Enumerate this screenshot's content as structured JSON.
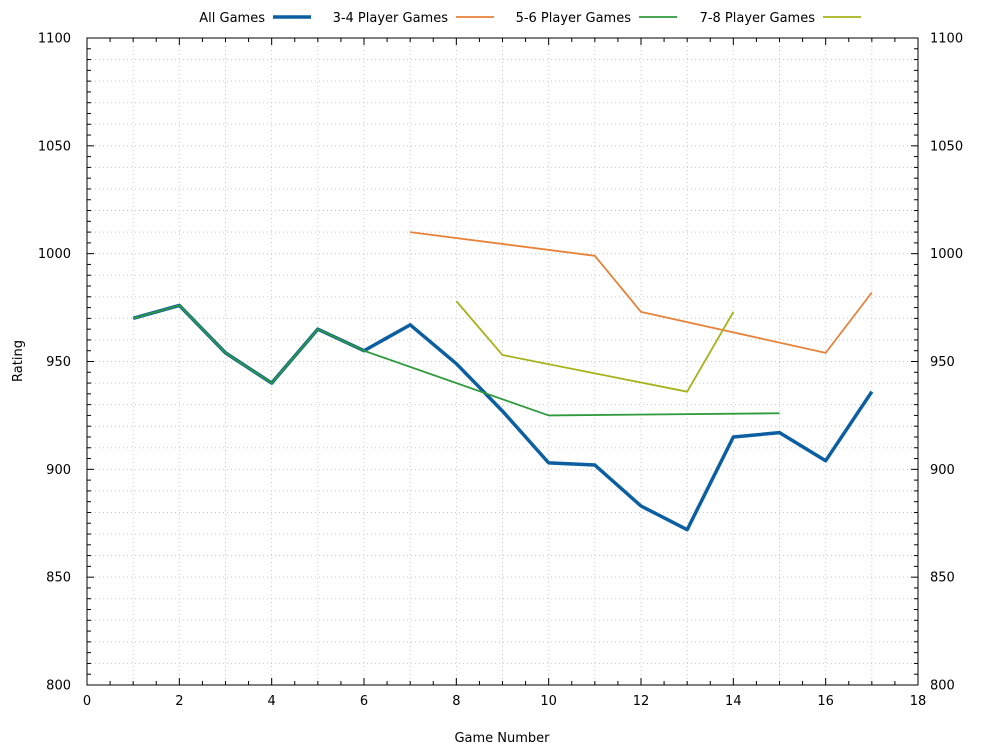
{
  "chart_data": {
    "type": "line",
    "title": "",
    "xlabel": "Game Number",
    "ylabel": "Rating",
    "xlim": [
      0,
      18
    ],
    "ylim": [
      800,
      1100
    ],
    "x_ticks": [
      0,
      2,
      4,
      6,
      8,
      10,
      12,
      14,
      16,
      18
    ],
    "y_ticks": [
      800,
      850,
      900,
      950,
      1000,
      1050,
      1100
    ],
    "grid": true,
    "legend_position": "top",
    "series": [
      {
        "name": "All Games",
        "color": "#0b5fa0",
        "width": 3.5,
        "points": [
          [
            1,
            970
          ],
          [
            2,
            976
          ],
          [
            3,
            954
          ],
          [
            4,
            940
          ],
          [
            5,
            965
          ],
          [
            6,
            955
          ],
          [
            7,
            967
          ],
          [
            8,
            949
          ],
          [
            9,
            927
          ],
          [
            10,
            903
          ],
          [
            11,
            902
          ],
          [
            12,
            883
          ],
          [
            13,
            872
          ],
          [
            14,
            915
          ],
          [
            15,
            917
          ],
          [
            16,
            904
          ],
          [
            17,
            936
          ]
        ]
      },
      {
        "name": "3-4 Player Games",
        "color": "#e8823a",
        "width": 1.8,
        "points": [
          [
            7,
            1010
          ],
          [
            11,
            999
          ],
          [
            12,
            973
          ],
          [
            16,
            954
          ],
          [
            17,
            982
          ]
        ]
      },
      {
        "name": "5-6 Player Games",
        "color": "#2e9a3b",
        "width": 1.8,
        "points": [
          [
            1,
            970
          ],
          [
            2,
            976
          ],
          [
            3,
            954
          ],
          [
            4,
            940
          ],
          [
            5,
            965
          ],
          [
            6,
            955
          ],
          [
            10,
            925
          ],
          [
            15,
            926
          ]
        ]
      },
      {
        "name": "7-8 Player Games",
        "color": "#a7b21a",
        "width": 1.8,
        "points": [
          [
            8,
            978
          ],
          [
            9,
            953
          ],
          [
            13,
            936
          ],
          [
            14,
            973
          ]
        ]
      }
    ]
  }
}
